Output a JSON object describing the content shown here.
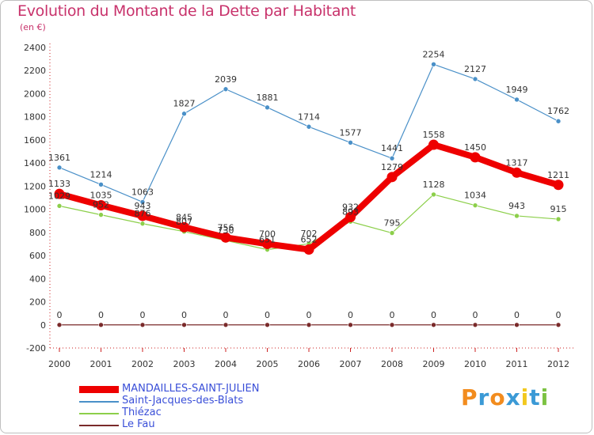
{
  "title": "Evolution du Montant de la Dette par Habitant",
  "subtitle": "(en €)",
  "logo": {
    "text": "Proxiti",
    "letters": [
      "P",
      "r",
      "o",
      "x",
      "i",
      "t",
      "i"
    ],
    "colors": [
      "#f28c1e",
      "#3b9ad6",
      "#f28c1e",
      "#3b9ad6",
      "#f2c81e",
      "#3b9ad6",
      "#7cc242"
    ]
  },
  "chart_data": {
    "type": "line",
    "title": "Evolution du Montant de la Dette par Habitant",
    "ylabel": "(en €)",
    "x": [
      "2000",
      "2001",
      "2002",
      "2003",
      "2004",
      "2005",
      "2006",
      "2007",
      "2008",
      "2009",
      "2010",
      "2011",
      "2012"
    ],
    "ylim": [
      -200,
      2400
    ],
    "yticks": [
      -200,
      0,
      200,
      400,
      600,
      800,
      1000,
      1200,
      1400,
      1600,
      1800,
      2000,
      2200,
      2400
    ],
    "grid": false,
    "legend_placement": "bottom-left",
    "series": [
      {
        "name": "MANDAILLES-SAINT-JULIEN",
        "color": "#ee0000",
        "values": [
          1133,
          1035,
          943,
          845,
          756,
          700,
          652,
          932,
          1279,
          1558,
          1450,
          1317,
          1211
        ],
        "labels": [
          "1133",
          "1035",
          "943",
          "845",
          "756",
          "700",
          "652",
          "932",
          "1279",
          "1558",
          "1450",
          "1317",
          "1211"
        ]
      },
      {
        "name": "Saint-Jacques-des-Blats",
        "color": "#4a90c8",
        "values": [
          1361,
          1214,
          1063,
          1827,
          2039,
          1881,
          1714,
          1577,
          1441,
          2254,
          2127,
          1949,
          1762
        ],
        "labels": [
          "1361",
          "1214",
          "1063",
          "1827",
          "2039",
          "1881",
          "1714",
          "1577",
          "1441",
          "2254",
          "2127",
          "1949",
          "1762"
        ]
      },
      {
        "name": "Thiézac",
        "color": "#8ccf4a",
        "values": [
          1029,
          952,
          876,
          807,
          730,
          651,
          702,
          893,
          795,
          1128,
          1034,
          943,
          915
        ],
        "labels": [
          "1029",
          "952",
          "876",
          "807",
          "730",
          "651",
          "702",
          "893",
          "795",
          "1128",
          "1034",
          "943",
          "915"
        ]
      },
      {
        "name": "Le Fau",
        "color": "#7a2a2a",
        "values": [
          0,
          0,
          0,
          0,
          0,
          0,
          0,
          0,
          0,
          0,
          0,
          0,
          0
        ],
        "labels": [
          "0",
          "0",
          "0",
          "0",
          "0",
          "0",
          "0",
          "0",
          "0",
          "0",
          "0",
          "0",
          "0"
        ]
      }
    ]
  }
}
